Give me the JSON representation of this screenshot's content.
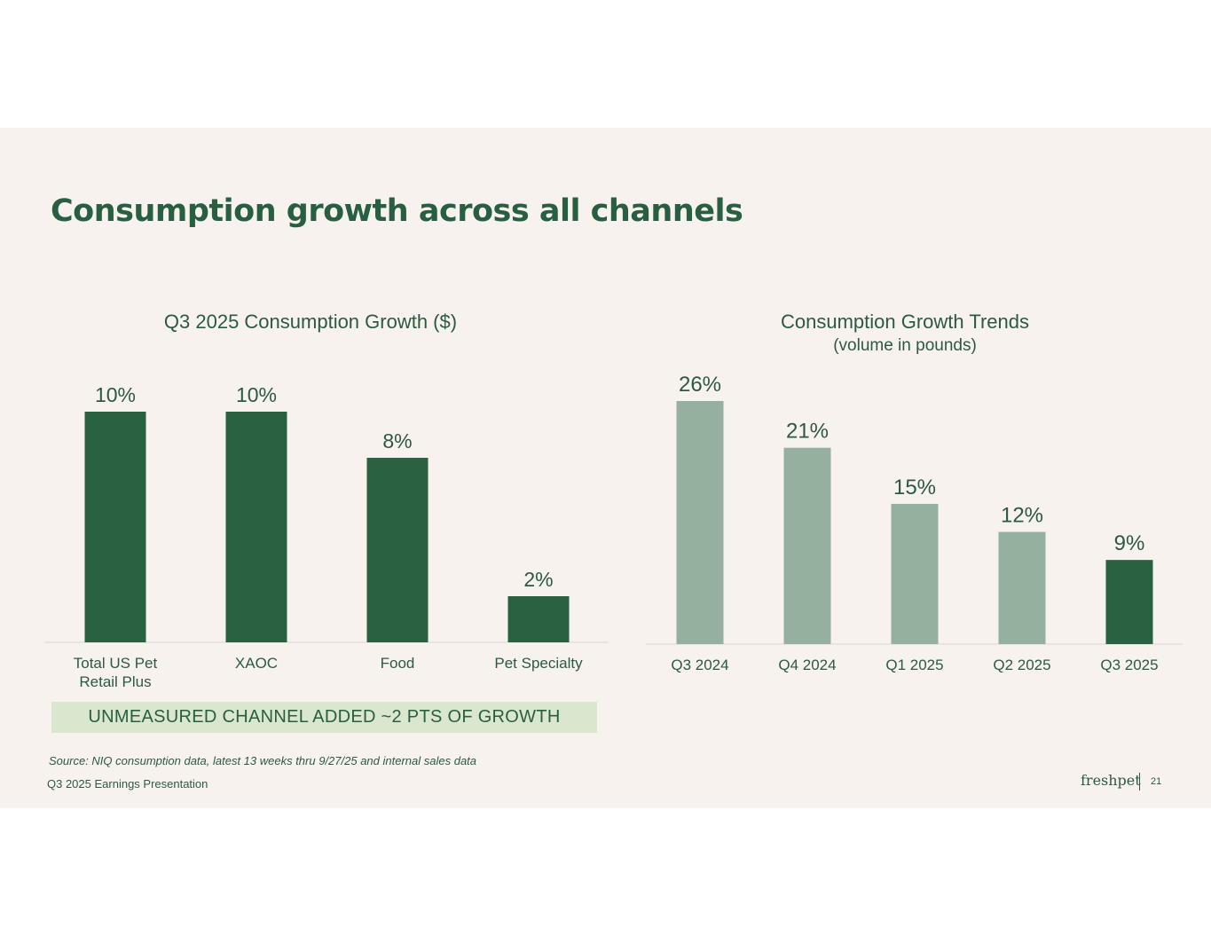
{
  "slide": {
    "title": "Consumption growth across all channels",
    "callout": "UNMEASURED CHANNEL ADDED ~2 PTS OF GROWTH",
    "source": "Source:  NIQ consumption data, latest 13 weeks thru 9/27/25 and internal sales data",
    "footer_left": "Q3 2025 Earnings Presentation",
    "logo_text": "freshpet",
    "page_number": "21"
  },
  "colors": {
    "dark_green": "#2a6141",
    "light_green": "#96b0a0",
    "text_green": "#2b5a3f",
    "background": "#f7f2ee",
    "callout_bg": "#dbe6ce"
  },
  "chart_data": [
    {
      "type": "bar",
      "title": "Q3 2025 Consumption Growth ($)",
      "subtitle": "",
      "categories": [
        "Total US Pet\nRetail Plus",
        "XAOC",
        "Food",
        "Pet Specialty"
      ],
      "values": [
        10,
        10,
        8,
        2
      ],
      "data_labels": [
        "10%",
        "10%",
        "8%",
        "2%"
      ],
      "highlight": [
        true,
        true,
        true,
        true
      ],
      "xlabel": "",
      "ylabel": "",
      "ylim": [
        0,
        10
      ],
      "grid": false,
      "legend": "none"
    },
    {
      "type": "bar",
      "title": "Consumption Growth Trends",
      "subtitle": "(volume in pounds)",
      "categories": [
        "Q3 2024",
        "Q4 2024",
        "Q1 2025",
        "Q2 2025",
        "Q3 2025"
      ],
      "values": [
        26,
        21,
        15,
        12,
        9
      ],
      "data_labels": [
        "26%",
        "21%",
        "15%",
        "12%",
        "9%"
      ],
      "highlight": [
        false,
        false,
        false,
        false,
        true
      ],
      "xlabel": "",
      "ylabel": "",
      "ylim": [
        0,
        26
      ],
      "grid": false,
      "legend": "none"
    }
  ]
}
